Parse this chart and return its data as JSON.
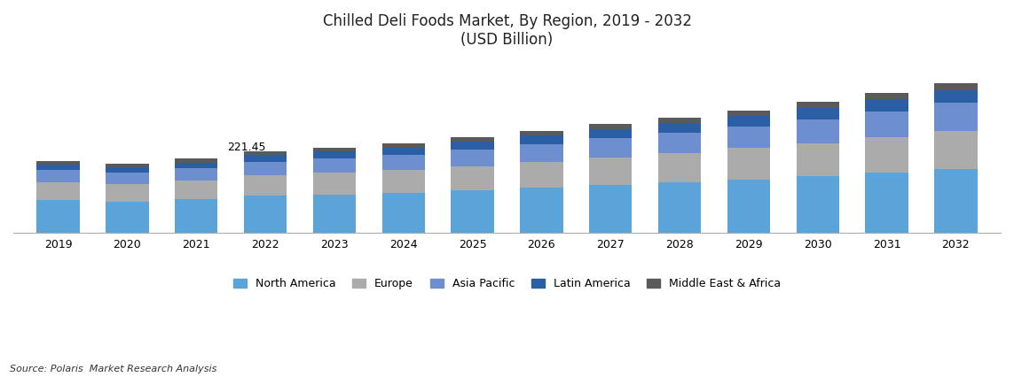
{
  "title_line1": "Chilled Deli Foods Market, By Region, 2019 - 2032",
  "title_line2": "(USD Billion)",
  "source": "Source: Polaris  Market Research Analysis",
  "annotation_year": "2022",
  "annotation_text": "221.45",
  "years": [
    2019,
    2020,
    2021,
    2022,
    2023,
    2024,
    2025,
    2026,
    2027,
    2028,
    2029,
    2030,
    2031,
    2032
  ],
  "series": {
    "North America": [
      88,
      85,
      90,
      100,
      104,
      108,
      115,
      122,
      130,
      137,
      145,
      153,
      163,
      172
    ],
    "Europe": [
      50,
      48,
      52,
      56,
      59,
      62,
      66,
      71,
      75,
      80,
      85,
      91,
      98,
      105
    ],
    "Asia Pacific": [
      32,
      30,
      33,
      37,
      39,
      42,
      45,
      48,
      52,
      56,
      60,
      65,
      70,
      76
    ],
    "Latin America": [
      16,
      15,
      16,
      18,
      19,
      20,
      21,
      23,
      25,
      26,
      28,
      30,
      32,
      35
    ],
    "Middle East & Africa": [
      10,
      9,
      10,
      10.45,
      11,
      11.5,
      12,
      13,
      14,
      14.5,
      15.5,
      16.5,
      17.5,
      19
    ]
  },
  "colors": {
    "North America": "#5BA4D9",
    "Europe": "#ABABAB",
    "Asia Pacific": "#6E8FCF",
    "Latin America": "#2B5FA5",
    "Middle East & Africa": "#5A5A5A"
  },
  "legend_order": [
    "North America",
    "Europe",
    "Asia Pacific",
    "Latin America",
    "Middle East & Africa"
  ],
  "bar_width": 0.62,
  "background_color": "#FFFFFF",
  "title_fontsize": 12,
  "axis_fontsize": 9,
  "legend_fontsize": 9
}
